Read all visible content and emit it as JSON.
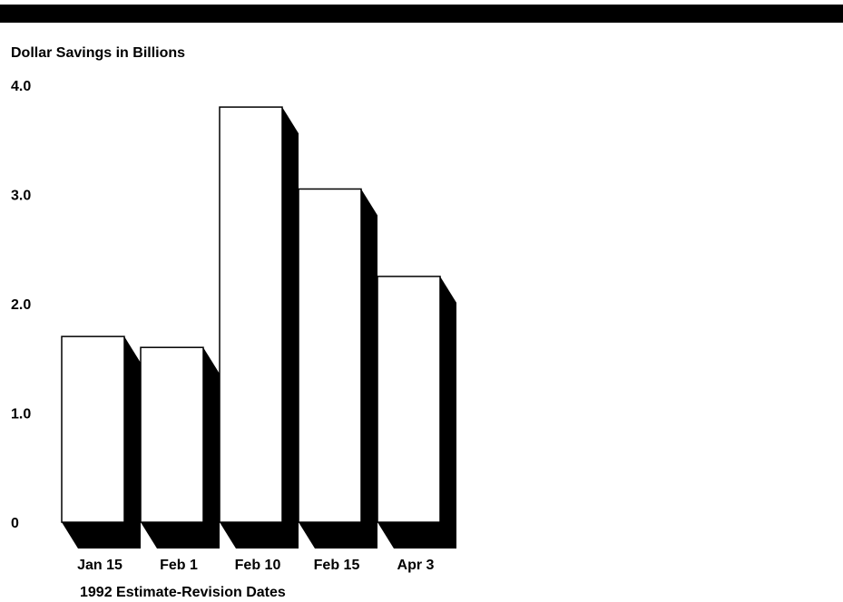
{
  "chart_data": {
    "type": "bar",
    "title": "",
    "ylabel": "Dollar Savings in Billions",
    "xlabel": "1992 Estimate-Revision Dates",
    "categories": [
      "Jan 15",
      "Feb 1",
      "Feb 10",
      "Feb 15",
      "Apr 3"
    ],
    "values": [
      1.7,
      1.6,
      3.8,
      3.05,
      2.25
    ],
    "ylim": [
      0,
      4.0
    ],
    "yticks": [
      "0",
      "1.0",
      "2.0",
      "3.0",
      "4.0"
    ],
    "grid": false,
    "bar_color": "#ffffff",
    "shadow_color": "#000000"
  }
}
